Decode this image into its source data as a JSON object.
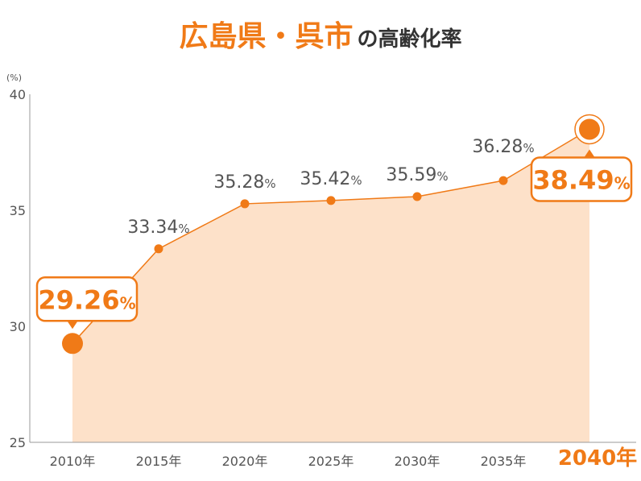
{
  "title": {
    "main": "広島県・呉市",
    "sub": "の高齢化率"
  },
  "chart_data": {
    "type": "area",
    "ylabel": "(%)",
    "ylim": [
      25,
      40
    ],
    "yticks": [
      25,
      30,
      35,
      40
    ],
    "categories": [
      "2010年",
      "2015年",
      "2020年",
      "2025年",
      "2030年",
      "2035年",
      "2040年"
    ],
    "values": [
      29.26,
      33.34,
      35.28,
      35.42,
      35.59,
      36.28,
      38.49
    ],
    "value_labels": [
      "29.26",
      "33.34",
      "35.28",
      "35.42",
      "35.59",
      "36.28",
      "38.49"
    ],
    "value_unit": "%",
    "highlighted": [
      0,
      6
    ],
    "colors": {
      "accent": "#f07a17",
      "fill": "#fde1c9",
      "text": "#555555"
    }
  }
}
